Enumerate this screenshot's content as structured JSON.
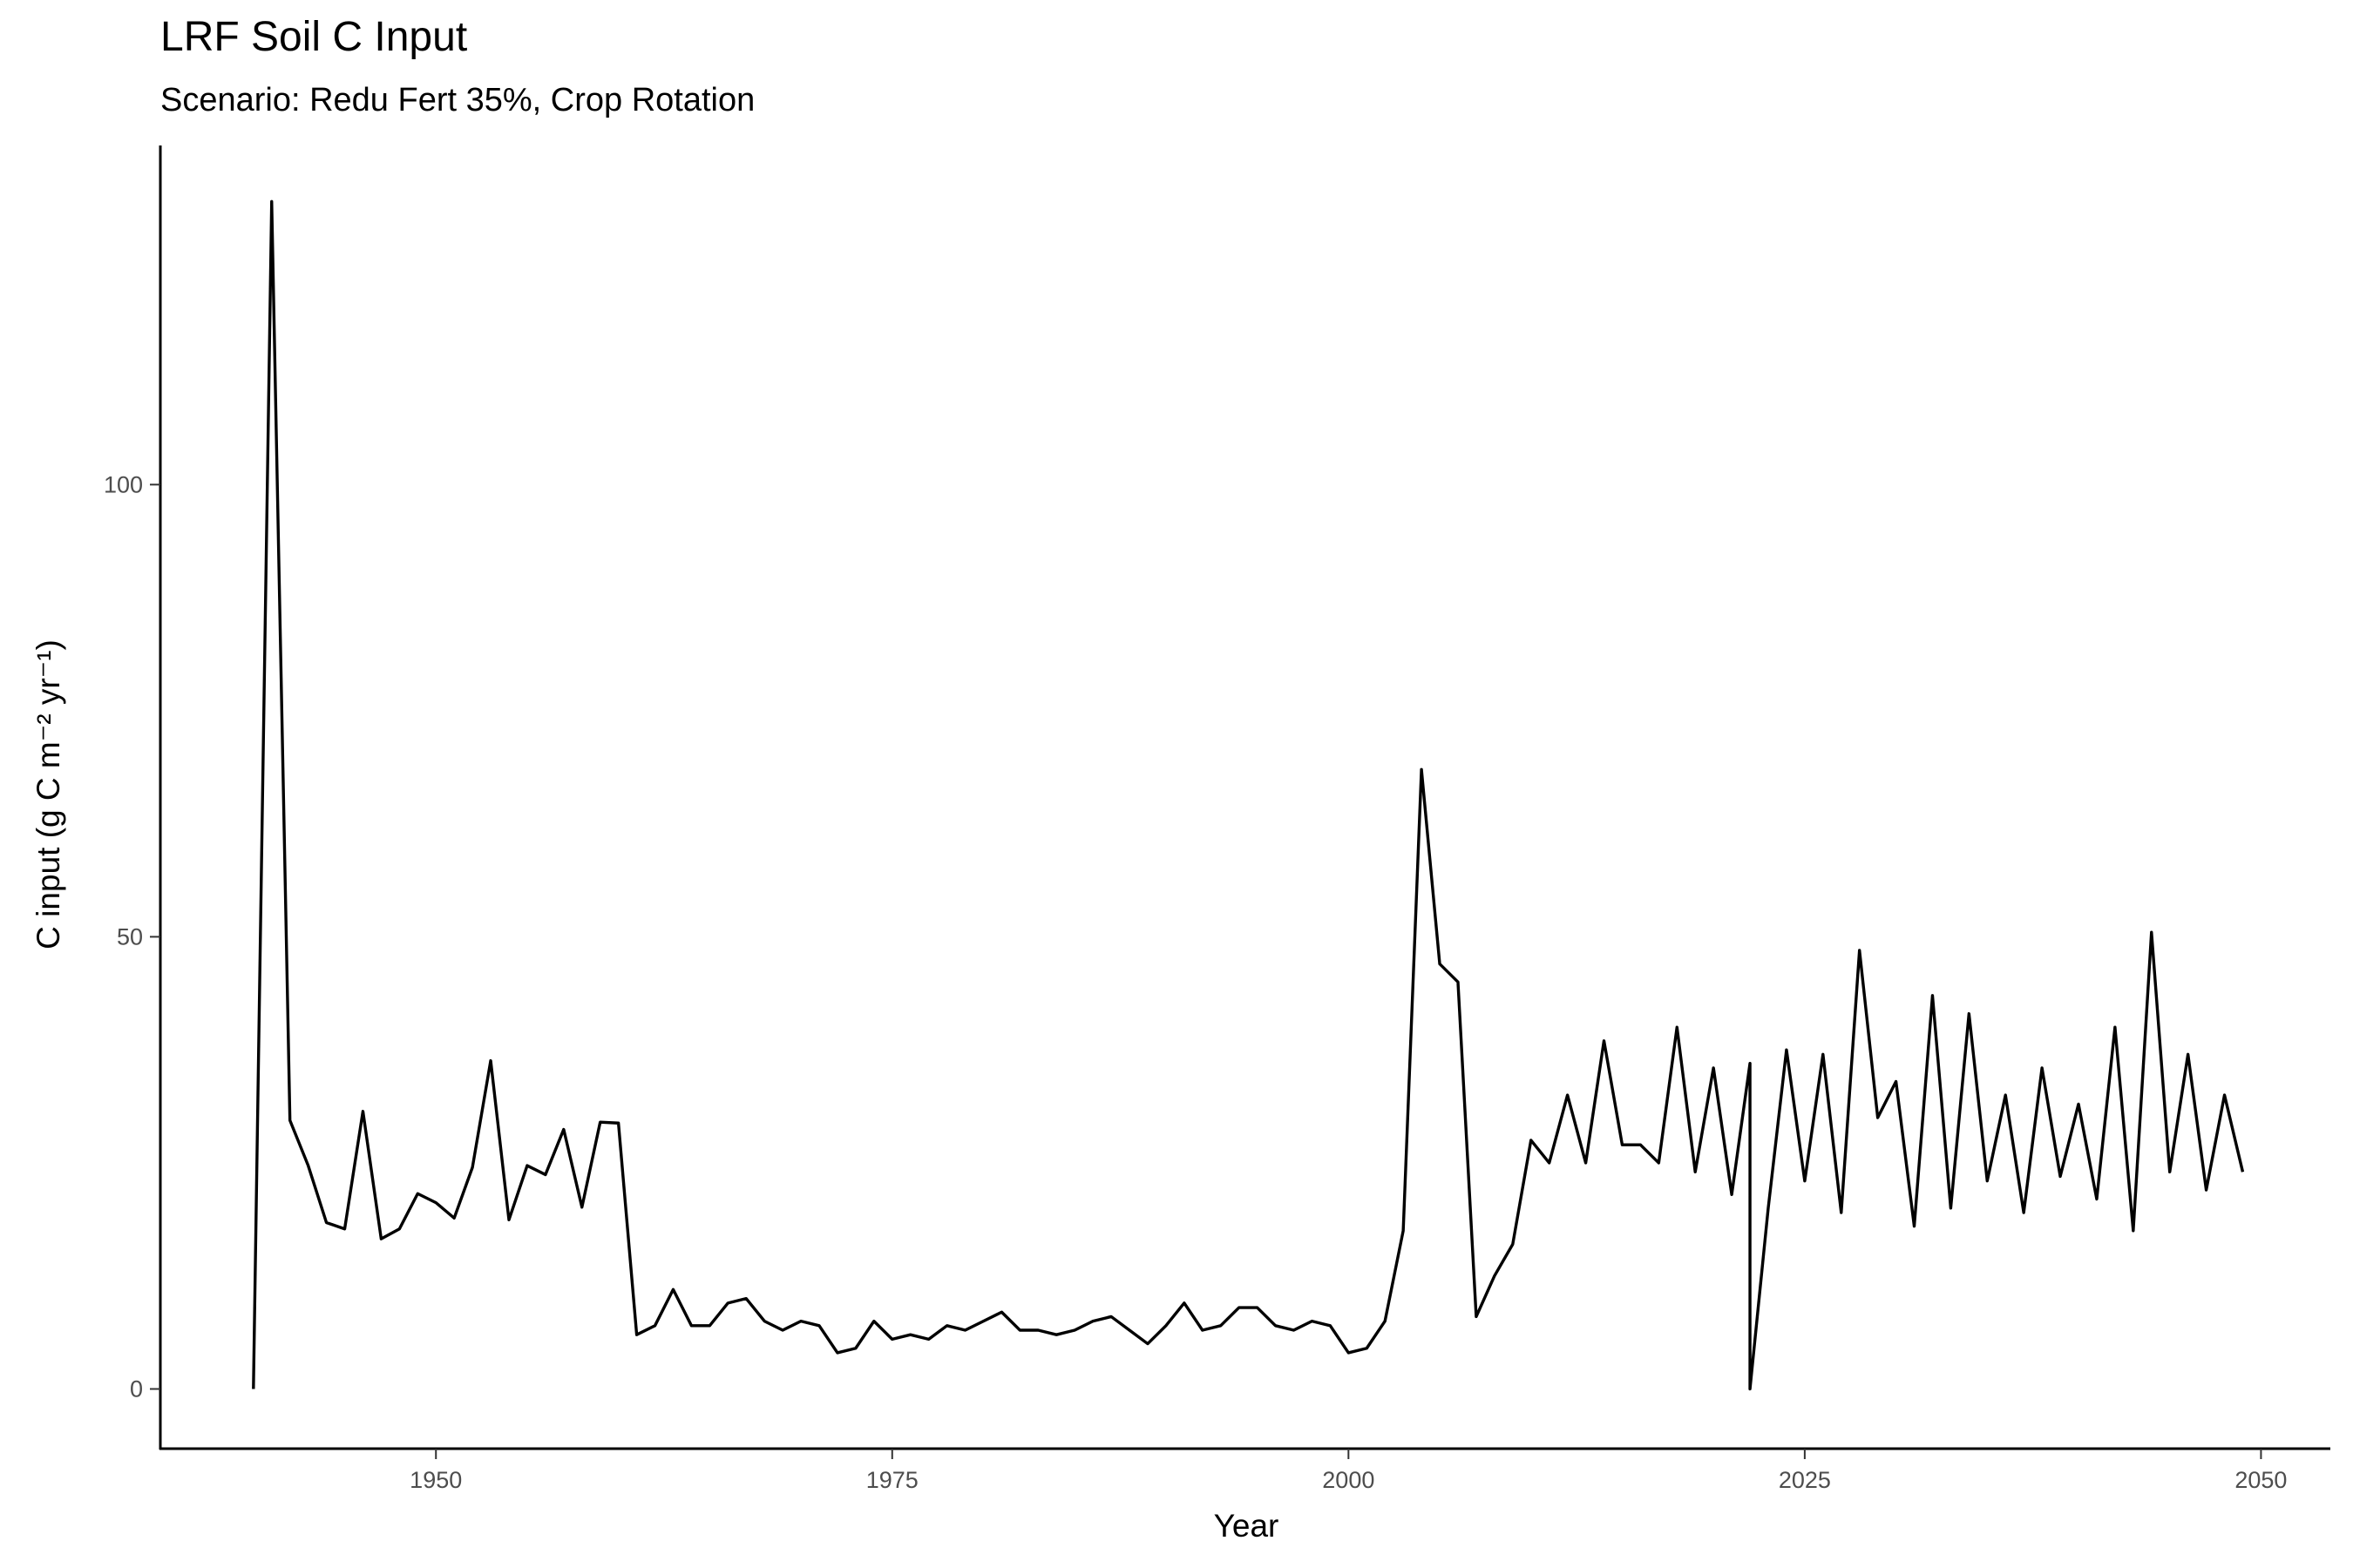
{
  "chart_data": {
    "type": "line",
    "title": "LRF Soil C Input",
    "subtitle": "Scenario: Redu Fert 35%, Crop Rotation",
    "x_label": "Year",
    "y_label": "C input (g C m⁻² yr⁻¹)",
    "color": "#000000",
    "x": [
      1940,
      1941,
      1942,
      1943,
      1944,
      1945,
      1946,
      1947,
      1948,
      1949,
      1950,
      1951,
      1952,
      1953,
      1954,
      1955,
      1956,
      1957,
      1958,
      1959,
      1960,
      1961,
      1962,
      1963,
      1964,
      1965,
      1966,
      1967,
      1968,
      1969,
      1970,
      1971,
      1972,
      1973,
      1974,
      1975,
      1976,
      1977,
      1978,
      1979,
      1980,
      1981,
      1982,
      1983,
      1984,
      1985,
      1986,
      1987,
      1988,
      1989,
      1990,
      1991,
      1992,
      1993,
      1994,
      1995,
      1996,
      1997,
      1998,
      1999,
      2000,
      2001,
      2002,
      2003,
      2004,
      2005,
      2006,
      2007,
      2008,
      2009,
      2010,
      2011,
      2012,
      2013,
      2014,
      2015,
      2016,
      2017,
      2018,
      2019,
      2020,
      2021,
      2022,
      2022,
      2023,
      2024,
      2025,
      2026,
      2027,
      2028,
      2029,
      2030,
      2031,
      2032,
      2033,
      2034,
      2035,
      2036,
      2037,
      2038,
      2039,
      2040,
      2041,
      2042,
      2043,
      2044,
      2045,
      2046,
      2047,
      2048,
      2049
    ],
    "values": [
      0,
      131.3,
      29.7,
      24.7,
      18.4,
      17.7,
      30.7,
      16.6,
      17.7,
      21.6,
      20.6,
      18.9,
      24.5,
      36.3,
      18.7,
      24.7,
      23.7,
      28.7,
      20.1,
      29.5,
      29.4,
      6,
      7,
      11,
      7,
      7,
      9.5,
      10,
      7.5,
      6.5,
      7.5,
      7,
      4,
      4.5,
      7.5,
      5.5,
      6,
      5.5,
      7,
      6.5,
      7.5,
      8.5,
      6.5,
      6.5,
      6,
      6.5,
      7.5,
      8,
      6.5,
      5,
      7,
      9.5,
      6.5,
      7,
      9,
      9,
      7,
      6.5,
      7.5,
      7,
      4,
      4.5,
      7.5,
      17.5,
      68.5,
      47,
      45,
      8,
      12.5,
      16,
      27.5,
      25,
      32.5,
      25,
      38.5,
      27,
      27,
      25,
      40,
      24,
      35.5,
      21.5,
      36,
      0,
      20,
      37.5,
      23,
      37,
      19.5,
      48.5,
      30,
      34,
      18,
      43.5,
      20,
      41.5,
      23,
      32.5,
      19.5,
      35.5,
      23.5,
      31.5,
      21,
      40,
      17.5,
      50.5,
      24,
      37,
      22,
      32.5,
      24
    ],
    "xlim": [
      1934.9,
      2053.8
    ],
    "ylim": [
      -6.6,
      137.5
    ],
    "xticks": [
      1950,
      1975,
      2000,
      2025,
      2050
    ],
    "yticks": [
      0,
      50,
      100
    ],
    "grid": false
  }
}
